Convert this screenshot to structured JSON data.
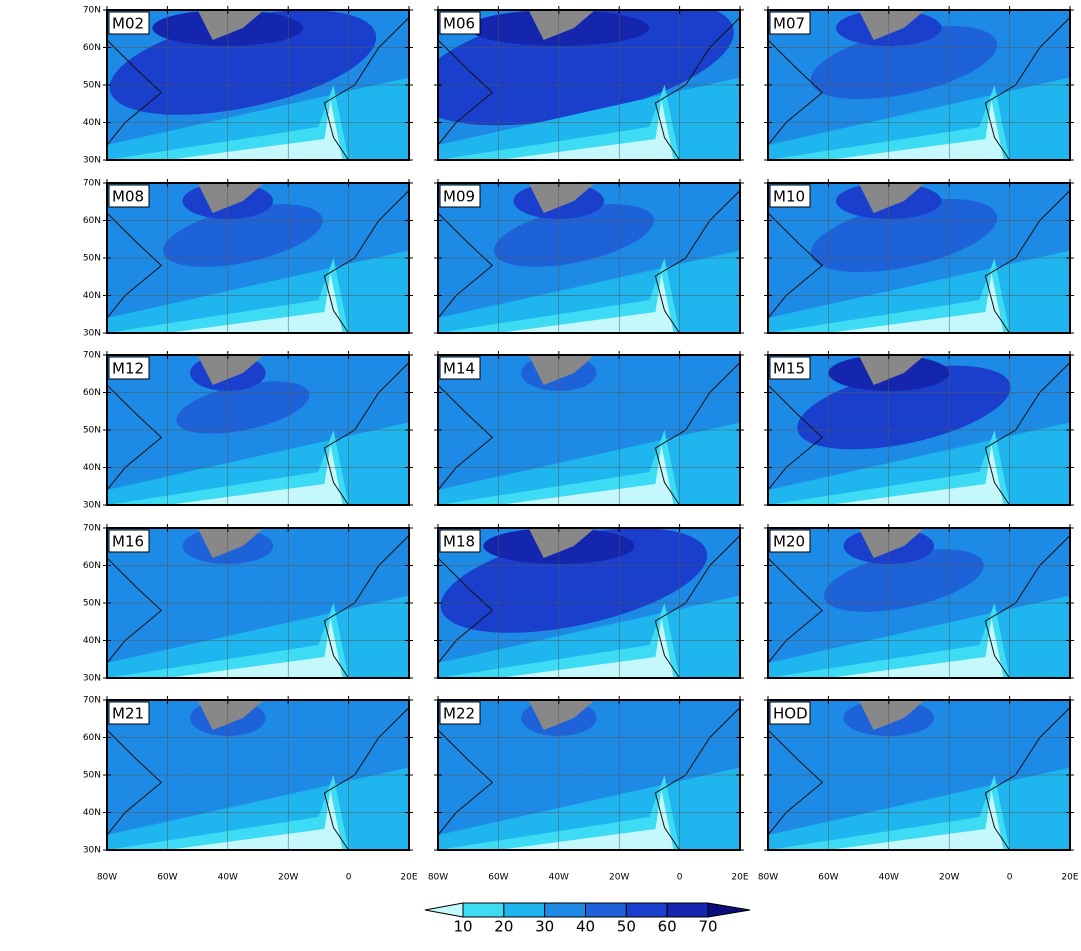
{
  "panels": [
    "M02",
    "M06",
    "M07",
    "M08",
    "M09",
    "M10",
    "M12",
    "M14",
    "M15",
    "M16",
    "M18",
    "M20",
    "M21",
    "M22",
    "HOD"
  ],
  "lat_ticks": [
    {
      "value": 70,
      "label": "70N"
    },
    {
      "value": 60,
      "label": "60N"
    },
    {
      "value": 50,
      "label": "50N"
    },
    {
      "value": 40,
      "label": "40N"
    },
    {
      "value": 30,
      "label": "30N"
    }
  ],
  "lon_ticks": [
    {
      "value": -80,
      "label": "80W"
    },
    {
      "value": -60,
      "label": "60W"
    },
    {
      "value": -40,
      "label": "40W"
    },
    {
      "value": -20,
      "label": "20W"
    },
    {
      "value": 0,
      "label": "0"
    },
    {
      "value": 20,
      "label": "20E"
    }
  ],
  "colorbar": {
    "ticks": [
      10,
      20,
      30,
      40,
      50,
      60,
      70
    ],
    "colors": [
      "#c4f8fc",
      "#3edcf4",
      "#1fb6ef",
      "#1d8be6",
      "#1e62da",
      "#1a3fcc",
      "#1526ae",
      "#0c0c7c"
    ]
  }
}
